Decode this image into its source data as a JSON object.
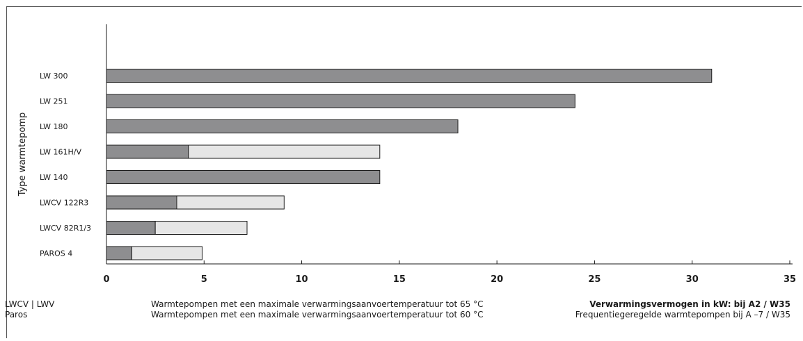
{
  "chart_data": {
    "type": "bar",
    "orientation": "horizontal",
    "stacked": true,
    "ylabel": "Type warmtepomp",
    "categories": [
      "LW 300",
      "LW 251",
      "LW 180",
      "LW 161H/V",
      "LW 140",
      "LWCV 122R3",
      "LWCV 82R1/3",
      "PAROS 4"
    ],
    "series": [
      {
        "values": [
          31,
          24,
          18,
          4.2,
          14,
          3.6,
          2.5,
          1.3
        ],
        "color": "#8e8e90"
      },
      {
        "values": [
          0,
          0,
          0,
          9.8,
          0,
          5.5,
          4.7,
          3.6
        ],
        "color": "#e6e6e6"
      }
    ],
    "xlim": [
      0,
      35
    ],
    "xticks": [
      "0",
      "5",
      "10",
      "15",
      "20",
      "25",
      "30",
      "35"
    ],
    "grid": false
  },
  "legend": {
    "left": [
      "LWCV | LWV",
      "Paros"
    ],
    "middle": [
      "Warmtepompen met een maximale verwarmingsaanvoertemperatuur tot 65 °C",
      "Warmtepompen met een maximale verwarmingsaanvoertemperatuur tot 60 °C"
    ],
    "right_title": "Verwarmingsvermogen in kW: bij A2 / W35",
    "right_sub": "Frequentiegeregelde warmtepompen bij A –7 / W35"
  }
}
